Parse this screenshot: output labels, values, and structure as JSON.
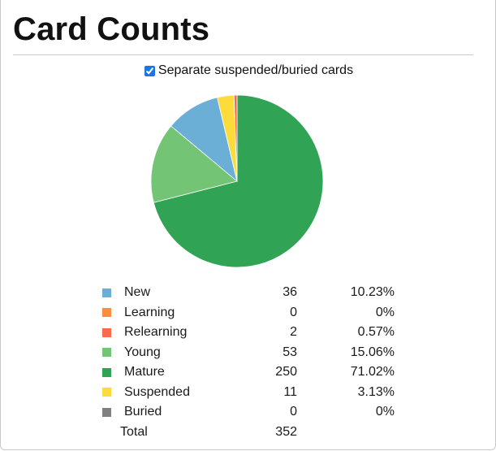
{
  "title": "Card Counts",
  "option": {
    "label": "Separate suspended/buried cards",
    "checked": true
  },
  "chart_data": {
    "type": "pie",
    "categories": [
      "New",
      "Learning",
      "Relearning",
      "Young",
      "Mature",
      "Suspended",
      "Buried"
    ],
    "values": [
      36,
      0,
      2,
      53,
      250,
      11,
      0
    ],
    "percentages": [
      "10.23%",
      "0%",
      "0.57%",
      "15.06%",
      "71.02%",
      "3.13%",
      "0%"
    ],
    "colors": [
      "#6baed6",
      "#fd8d3c",
      "#fb6a4a",
      "#74c476",
      "#31a354",
      "#fddb3a",
      "#808080"
    ],
    "total_label": "Total",
    "total": 352
  }
}
